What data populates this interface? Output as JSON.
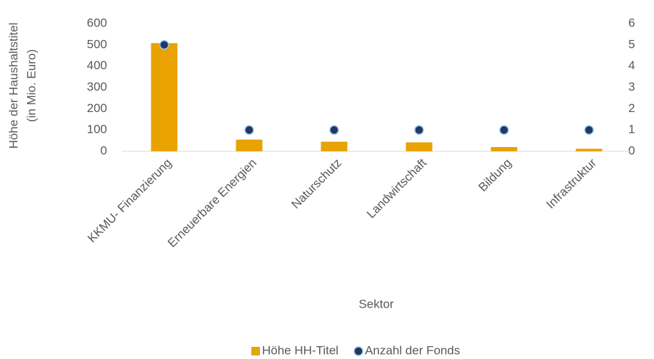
{
  "chart_data": {
    "type": "bar",
    "ylabel": [
      "Höhe der Haushaltstitel",
      "(in Mio. Euro)"
    ],
    "xlabel": "Sektor",
    "categories": [
      "KKMU- Finanzierung",
      "Erneuerbare Energien",
      "Naturschutz",
      "Landwirtschaft",
      "Bildung",
      "Infrastruktur"
    ],
    "series": [
      {
        "name": "Höhe HH-Titel",
        "type": "bar",
        "color": "#e8a202",
        "axis": "y",
        "values": [
          508,
          55,
          45,
          42,
          20,
          12
        ]
      },
      {
        "name": "Anzahl der Fonds",
        "type": "scatter",
        "color": "#1f3864",
        "axis": "y2",
        "values": [
          5,
          1,
          1,
          1,
          1,
          1
        ]
      }
    ],
    "ylim": [
      0,
      600
    ],
    "yticks": [
      0,
      100,
      200,
      300,
      400,
      500,
      600
    ],
    "y2lim": [
      0,
      6
    ],
    "y2ticks": [
      0,
      1,
      2,
      3,
      4,
      5,
      6
    ],
    "grid": false,
    "legend": "bottom"
  }
}
